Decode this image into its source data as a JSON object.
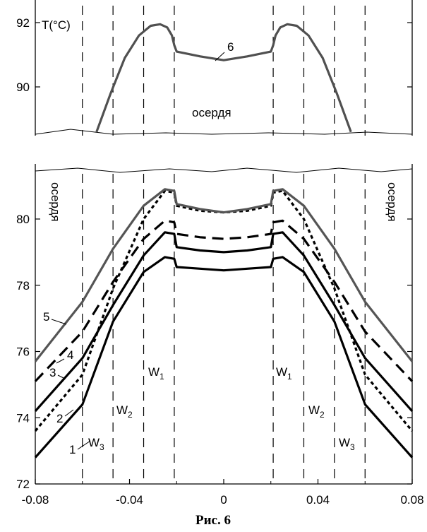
{
  "chart_data": [
    {
      "type": "line",
      "panel": "top",
      "ylabel": "T(°C)",
      "y_ticks": [
        "92",
        "90"
      ],
      "ylim": [
        88.5,
        92.3
      ],
      "xlim": [
        -0.08,
        0.08
      ],
      "region_label": "осердя",
      "series": [
        {
          "name": "6",
          "color": "#505050",
          "x": [
            -0.054,
            -0.048,
            -0.042,
            -0.036,
            -0.031,
            -0.027,
            -0.024,
            -0.022,
            -0.021,
            -0.02,
            -0.01,
            0.0,
            0.01,
            0.02,
            0.021,
            0.022,
            0.024,
            0.027,
            0.031,
            0.036,
            0.042,
            0.048,
            0.054
          ],
          "y": [
            88.6,
            89.8,
            90.9,
            91.6,
            91.9,
            91.95,
            91.85,
            91.6,
            91.3,
            91.1,
            90.95,
            90.83,
            90.95,
            91.1,
            91.3,
            91.6,
            91.85,
            91.95,
            91.9,
            91.6,
            90.9,
            89.8,
            88.6
          ]
        }
      ]
    },
    {
      "type": "line",
      "panel": "bottom",
      "y_ticks": [
        "80",
        "78",
        "76",
        "74",
        "72"
      ],
      "x_ticks": [
        "-0.08",
        "-0.04",
        "0",
        "0.04",
        "0.08"
      ],
      "ylim": [
        72,
        81.6
      ],
      "xlim": [
        -0.08,
        0.08
      ],
      "region_labels": [
        "осердя",
        "осердя"
      ],
      "zone_labels": {
        "w1_left": {
          "main": "W",
          "sub": "1"
        },
        "w2_left": {
          "main": "W",
          "sub": "2"
        },
        "w3_left": {
          "main": "W",
          "sub": "3"
        },
        "w1_right": {
          "main": "W",
          "sub": "1"
        },
        "w2_right": {
          "main": "W",
          "sub": "2"
        },
        "w3_right": {
          "main": "W",
          "sub": "3"
        }
      },
      "zone_boundaries": [
        -0.06,
        -0.047,
        -0.034,
        -0.021,
        0.021,
        0.034,
        0.047,
        0.06
      ],
      "series": [
        {
          "name": "1",
          "color": "#000000",
          "dash": "solid",
          "x": [
            -0.08,
            -0.06,
            -0.047,
            -0.034,
            -0.025,
            -0.021,
            -0.02,
            -0.01,
            0.0,
            0.01,
            0.02,
            0.021,
            0.025,
            0.034,
            0.047,
            0.06,
            0.08
          ],
          "y": [
            72.8,
            74.4,
            76.9,
            78.4,
            78.85,
            78.8,
            78.55,
            78.5,
            78.45,
            78.5,
            78.55,
            78.8,
            78.85,
            78.4,
            76.9,
            74.4,
            72.8
          ]
        },
        {
          "name": "2",
          "color": "#000000",
          "dash": "dotted",
          "x": [
            -0.08,
            -0.06,
            -0.047,
            -0.034,
            -0.025,
            -0.021,
            -0.02,
            -0.01,
            0.0,
            0.01,
            0.02,
            0.021,
            0.025,
            0.034,
            0.047,
            0.06,
            0.08
          ],
          "y": [
            73.6,
            75.3,
            77.9,
            80.0,
            80.85,
            80.8,
            80.4,
            80.25,
            80.2,
            80.25,
            80.4,
            80.8,
            80.85,
            80.0,
            77.9,
            75.3,
            73.6
          ]
        },
        {
          "name": "3",
          "color": "#000000",
          "dash": "solid",
          "x": [
            -0.08,
            -0.06,
            -0.047,
            -0.034,
            -0.025,
            -0.021,
            -0.02,
            -0.01,
            0.0,
            0.01,
            0.02,
            0.021,
            0.025,
            0.034,
            0.047,
            0.06,
            0.08
          ],
          "y": [
            74.2,
            75.8,
            77.4,
            78.9,
            79.6,
            79.55,
            79.15,
            79.05,
            79.0,
            79.05,
            79.15,
            79.55,
            79.6,
            78.9,
            77.4,
            75.8,
            74.2
          ]
        },
        {
          "name": "4",
          "color": "#000000",
          "dash": "dashed",
          "x": [
            -0.08,
            -0.06,
            -0.047,
            -0.034,
            -0.025,
            -0.021,
            -0.02,
            -0.01,
            0.0,
            0.01,
            0.02,
            0.021,
            0.025,
            0.034,
            0.047,
            0.06,
            0.08
          ],
          "y": [
            75.1,
            76.6,
            78.1,
            79.4,
            79.95,
            79.9,
            79.55,
            79.45,
            79.4,
            79.45,
            79.55,
            79.9,
            79.95,
            79.4,
            78.1,
            76.6,
            75.1
          ]
        },
        {
          "name": "5",
          "color": "#555555",
          "dash": "solid",
          "x": [
            -0.08,
            -0.06,
            -0.047,
            -0.034,
            -0.025,
            -0.021,
            -0.02,
            -0.01,
            0.0,
            0.01,
            0.02,
            0.021,
            0.025,
            0.034,
            0.047,
            0.06,
            0.08
          ],
          "y": [
            75.7,
            77.5,
            79.1,
            80.4,
            80.9,
            80.85,
            80.45,
            80.3,
            80.2,
            80.3,
            80.45,
            80.85,
            80.9,
            80.4,
            79.1,
            77.5,
            75.7
          ]
        }
      ]
    }
  ],
  "caption": "Рис. 6"
}
